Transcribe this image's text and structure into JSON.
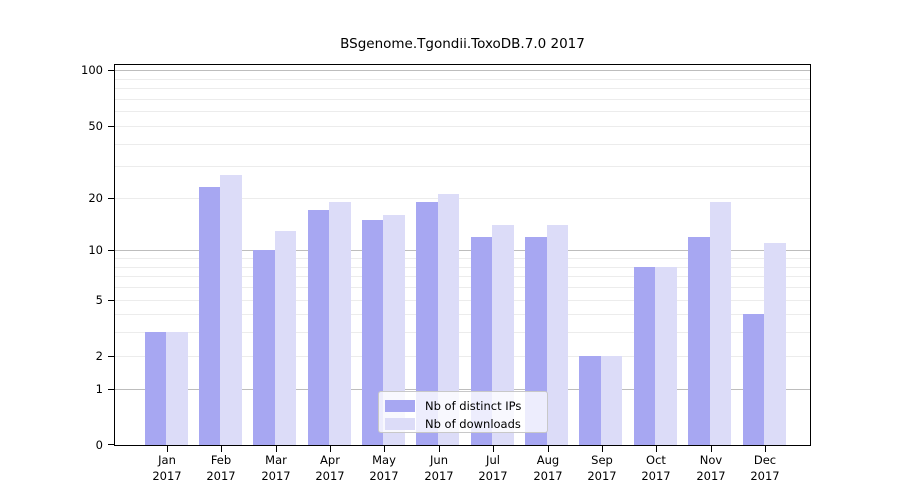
{
  "title": "BSgenome.Tgondii.ToxoDB.7.0 2017",
  "chart_data": {
    "type": "bar",
    "title": "BSgenome.Tgondii.ToxoDB.7.0 2017",
    "categories": [
      "Jan",
      "Feb",
      "Mar",
      "Apr",
      "May",
      "Jun",
      "Jul",
      "Aug",
      "Sep",
      "Oct",
      "Nov",
      "Dec"
    ],
    "year_label": "2017",
    "series": [
      {
        "name": "Nb of distinct IPs",
        "color": "#a7a7f2",
        "values": [
          3,
          23,
          10,
          17,
          15,
          19,
          12,
          12,
          2,
          8,
          12,
          4
        ]
      },
      {
        "name": "Nb of downloads",
        "color": "#dcdcf8",
        "values": [
          3,
          27,
          13,
          19,
          16,
          21,
          14,
          14,
          2,
          8,
          19,
          11
        ]
      }
    ],
    "y_axis": {
      "scale": "log1p",
      "tick_labels": [
        "0",
        "1",
        "2",
        "5",
        "10",
        "20",
        "50",
        "100"
      ],
      "ticks": [
        0,
        1,
        2,
        5,
        10,
        20,
        50,
        100
      ],
      "minor_ticks": [
        3,
        4,
        6,
        7,
        8,
        9,
        30,
        40,
        60,
        70,
        80,
        90
      ],
      "major_gridlines": [
        1,
        10,
        100
      ],
      "max_value": 107
    },
    "grid": true,
    "legend_position": "inside-bottom-center"
  },
  "colors": {
    "ips_bar": "#a7a7f2",
    "downloads_bar": "#dcdcf8",
    "grid_minor": "#ececec",
    "grid_major": "#bdbdbd",
    "axis": "#000000",
    "background": "#ffffff",
    "legend_border": "#c8c8c8"
  }
}
